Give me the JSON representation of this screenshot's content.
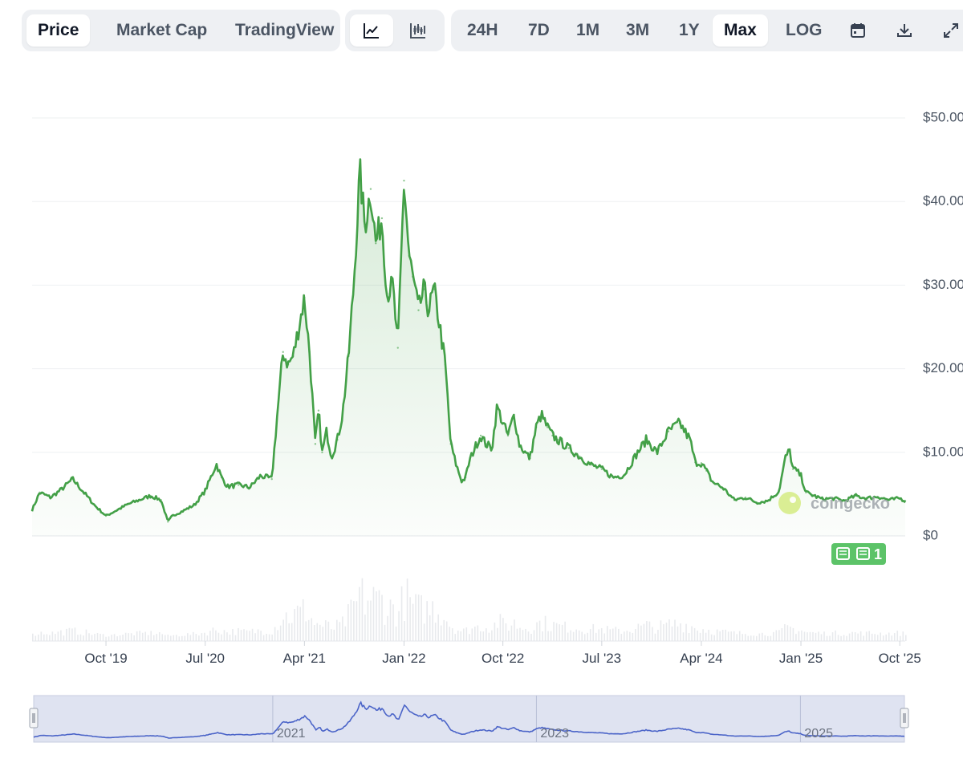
{
  "toolbar": {
    "metric_tabs": [
      {
        "label": "Price",
        "active": true
      },
      {
        "label": "Market Cap",
        "active": false
      },
      {
        "label": "TradingView",
        "active": false
      }
    ],
    "chart_styles": [
      {
        "icon": "line-chart-icon",
        "active": true
      },
      {
        "icon": "candlestick-chart-icon",
        "active": false
      }
    ],
    "ranges": [
      {
        "label": "24H",
        "active": false
      },
      {
        "label": "7D",
        "active": false
      },
      {
        "label": "1M",
        "active": false
      },
      {
        "label": "3M",
        "active": false
      },
      {
        "label": "1Y",
        "active": false
      },
      {
        "label": "Max",
        "active": true
      },
      {
        "label": "LOG",
        "active": false
      }
    ],
    "actions": [
      "calendar-icon",
      "download-icon",
      "expand-icon"
    ]
  },
  "watermark": "coingecko",
  "news_badge": {
    "count": "1"
  },
  "colors": {
    "price_line": "#43a047",
    "area_fill": "#43a047",
    "volume": "#e8eaed",
    "navigator_line": "#4b64c8",
    "navigator_bg": "#dfe3f1",
    "news_badge": "#5cc368"
  },
  "chart_data": {
    "type": "line",
    "title": "",
    "xlabel": "",
    "ylabel": "",
    "y_tick_labels": [
      "$0",
      "$10.00",
      "$20.00",
      "$30.00",
      "$40.00",
      "$50.00"
    ],
    "ylim": [
      0,
      50
    ],
    "x_tick_labels": [
      "Oct '19",
      "Jul '20",
      "Apr '21",
      "Jan '22",
      "Oct '22",
      "Jul '23",
      "Apr '24",
      "Jan '25",
      "Oct '25"
    ],
    "x_tick_dates": [
      "2019-10-01",
      "2020-07-01",
      "2021-04-01",
      "2022-01-01",
      "2022-10-01",
      "2023-07-01",
      "2024-04-01",
      "2025-01-01",
      "2025-10-01"
    ],
    "xlim": [
      "2019-03-11",
      "2025-10-16"
    ],
    "grid": true,
    "legend": "none",
    "navigator_labels": [
      "2021",
      "2023",
      "2025"
    ],
    "navigator_label_dates": [
      "2021-01-01",
      "2023-01-01",
      "2025-01-01"
    ],
    "series": [
      {
        "dates": [
          "2019-03-11",
          "2019-04-01",
          "2019-05-01",
          "2019-06-01",
          "2019-07-01",
          "2019-08-01",
          "2019-09-01",
          "2019-10-01",
          "2019-11-01",
          "2019-12-01",
          "2020-01-01",
          "2020-02-01",
          "2020-03-01",
          "2020-03-20",
          "2020-04-01",
          "2020-05-01",
          "2020-06-01",
          "2020-07-01",
          "2020-08-01",
          "2020-08-15",
          "2020-09-01",
          "2020-10-01",
          "2020-11-01",
          "2020-12-01",
          "2021-01-01",
          "2021-01-15",
          "2021-02-01",
          "2021-02-15",
          "2021-03-01",
          "2021-04-01",
          "2021-04-15",
          "2021-05-01",
          "2021-05-10",
          "2021-05-20",
          "2021-06-01",
          "2021-06-15",
          "2021-07-01",
          "2021-07-15",
          "2021-08-01",
          "2021-08-15",
          "2021-09-01",
          "2021-09-15",
          "2021-10-01",
          "2021-10-15",
          "2021-11-01",
          "2021-11-15",
          "2021-12-01",
          "2021-12-15",
          "2022-01-01",
          "2022-01-15",
          "2022-01-25",
          "2022-02-10",
          "2022-02-25",
          "2022-03-10",
          "2022-03-25",
          "2022-04-10",
          "2022-04-25",
          "2022-05-10",
          "2022-05-25",
          "2022-06-10",
          "2022-06-20",
          "2022-07-01",
          "2022-07-15",
          "2022-08-01",
          "2022-08-15",
          "2022-09-01",
          "2022-09-15",
          "2022-10-01",
          "2022-10-15",
          "2022-11-01",
          "2022-11-15",
          "2022-12-01",
          "2022-12-15",
          "2023-01-01",
          "2023-01-15",
          "2023-02-01",
          "2023-02-15",
          "2023-03-01",
          "2023-04-01",
          "2023-05-01",
          "2023-06-01",
          "2023-07-01",
          "2023-08-01",
          "2023-09-01",
          "2023-10-01",
          "2023-11-01",
          "2023-12-01",
          "2024-01-01",
          "2024-02-01",
          "2024-03-01",
          "2024-03-15",
          "2024-04-01",
          "2024-04-15",
          "2024-05-01",
          "2024-06-01",
          "2024-07-01",
          "2024-08-01",
          "2024-09-01",
          "2024-10-01",
          "2024-11-01",
          "2024-11-20",
          "2024-12-01",
          "2024-12-10",
          "2024-12-20",
          "2025-01-01",
          "2025-01-15",
          "2025-02-01",
          "2025-03-01",
          "2025-04-01",
          "2025-05-01",
          "2025-06-01",
          "2025-07-01",
          "2025-08-01",
          "2025-09-01",
          "2025-10-01",
          "2025-10-16"
        ],
        "values": [
          3.1,
          5.2,
          4.6,
          5.6,
          6.8,
          5.2,
          3.6,
          2.4,
          3.1,
          3.8,
          4.3,
          4.8,
          4.3,
          1.7,
          2.4,
          3.0,
          3.7,
          5.4,
          8.6,
          7.0,
          5.9,
          6.1,
          5.8,
          7.2,
          6.8,
          14.0,
          22.0,
          20.5,
          21.5,
          28.5,
          22.0,
          11.0,
          15.0,
          10.0,
          12.5,
          9.5,
          11.5,
          14.5,
          21.5,
          30.0,
          43.5,
          37.0,
          41.5,
          35.0,
          38.0,
          29.0,
          30.0,
          22.5,
          42.5,
          33.5,
          31.0,
          27.0,
          29.5,
          27.0,
          29.5,
          25.0,
          20.5,
          11.0,
          8.5,
          6.5,
          7.0,
          9.0,
          10.5,
          12.0,
          11.0,
          10.5,
          15.5,
          13.5,
          12.0,
          14.5,
          11.0,
          10.0,
          9.3,
          13.0,
          14.5,
          13.0,
          12.0,
          11.5,
          10.5,
          9.5,
          8.5,
          8.0,
          7.0,
          7.3,
          9.5,
          11.5,
          10.0,
          12.5,
          13.5,
          11.5,
          8.8,
          8.7,
          7.8,
          6.5,
          5.7,
          4.3,
          4.6,
          4.0,
          4.2,
          5.3,
          9.5,
          10.2,
          8.0,
          7.8,
          7.2,
          5.2,
          4.9,
          4.4,
          4.5,
          4.2,
          4.8,
          4.5,
          4.7,
          4.3,
          4.5,
          4.2
        ]
      }
    ]
  }
}
